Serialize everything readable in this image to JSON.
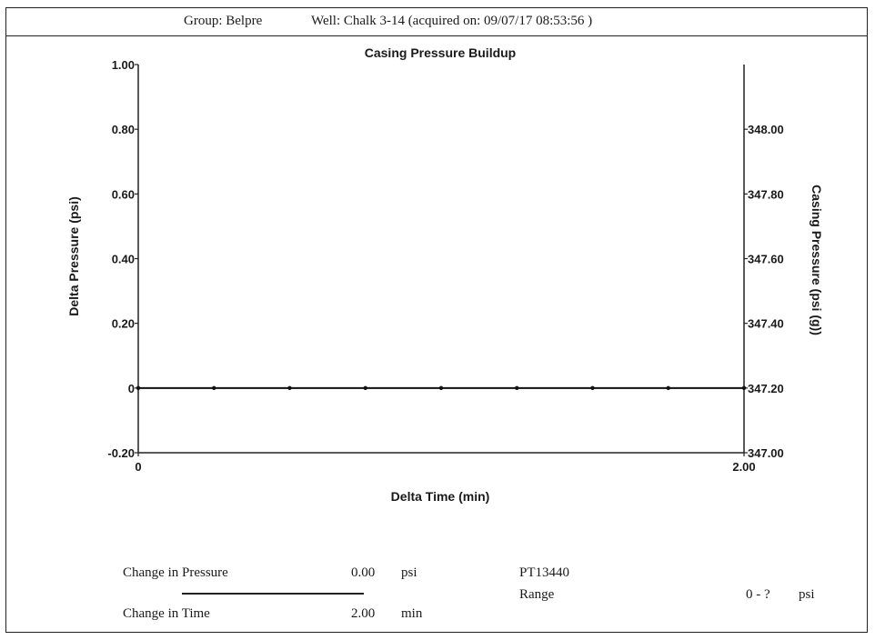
{
  "header": {
    "group": "Group: Belpre",
    "well": "Well: Chalk 3-14 (acquired on: 09/07/17 08:53:56 )"
  },
  "chart_data": {
    "type": "line",
    "title": "Casing Pressure Buildup",
    "xlabel": "Delta Time (min)",
    "ylabel": "Delta Pressure (psi)",
    "y2label": "Casing Pressure (psi (g))",
    "xlim": [
      0,
      2.0
    ],
    "ylim": [
      -0.2,
      1.0
    ],
    "y2lim": [
      347.0,
      348.1
    ],
    "x_ticks": [
      {
        "value": 0,
        "label": "0"
      },
      {
        "value": 2.0,
        "label": "2.00"
      }
    ],
    "y_ticks": [
      {
        "value": -0.2,
        "label": "-0.20"
      },
      {
        "value": 0,
        "label": "0"
      },
      {
        "value": 0.2,
        "label": "0.20"
      },
      {
        "value": 0.4,
        "label": "0.40"
      },
      {
        "value": 0.6,
        "label": "0.60"
      },
      {
        "value": 0.8,
        "label": "0.80"
      },
      {
        "value": 1.0,
        "label": "1.00"
      }
    ],
    "y2_ticks": [
      {
        "value": 347.0,
        "label": "347.00"
      },
      {
        "value": 347.2,
        "label": "347.20"
      },
      {
        "value": 347.4,
        "label": "347.40"
      },
      {
        "value": 347.6,
        "label": "347.60"
      },
      {
        "value": 347.8,
        "label": "347.80"
      },
      {
        "value": 348.0,
        "label": "348.00"
      }
    ],
    "series": [
      {
        "x": [
          0,
          0.25,
          0.5,
          0.75,
          1.0,
          1.25,
          1.5,
          1.75,
          2.0
        ],
        "y": [
          0,
          0,
          0,
          0,
          0,
          0,
          0,
          0,
          0
        ]
      }
    ],
    "legend": "none",
    "grid": false
  },
  "footer": {
    "change_pressure_label": "Change in Pressure",
    "change_pressure_value": "0.00",
    "change_pressure_unit": "psi",
    "change_time_label": "Change in Time",
    "change_time_value": "2.00",
    "change_time_unit": "min",
    "sensor": "PT13440",
    "range_label": "Range",
    "range_value": "0 - ?",
    "range_unit": "psi"
  }
}
